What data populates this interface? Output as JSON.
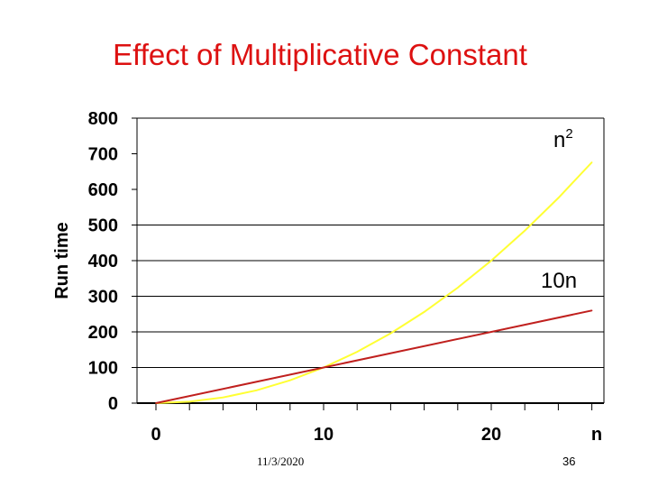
{
  "slide": {
    "title": "Effect of Multiplicative Constant",
    "footer_date": "11/3/2020",
    "page_number": "36"
  },
  "chart_data": {
    "type": "line",
    "title": "",
    "xlabel": "n",
    "ylabel": "Run time",
    "xlim": [
      0,
      26.5
    ],
    "ylim": [
      0,
      800
    ],
    "x_ticks": [
      0,
      10,
      20
    ],
    "y_ticks": [
      0,
      100,
      200,
      300,
      400,
      500,
      600,
      700,
      800
    ],
    "gridlines_y": [
      100,
      200,
      300,
      400,
      500
    ],
    "grid": true,
    "series": [
      {
        "name": "n²",
        "label_base": "n",
        "label_exp": "2",
        "color": "#ffff33",
        "x": [
          0,
          2,
          4,
          6,
          8,
          10,
          12,
          14,
          16,
          18,
          20,
          22,
          24,
          26
        ],
        "y": [
          0,
          4,
          16,
          36,
          64,
          100,
          144,
          196,
          256,
          324,
          400,
          484,
          576,
          676
        ]
      },
      {
        "name": "10n",
        "label_base": "10n",
        "label_exp": "",
        "color": "#c0201e",
        "x": [
          0,
          26
        ],
        "y": [
          0,
          260
        ]
      }
    ]
  }
}
